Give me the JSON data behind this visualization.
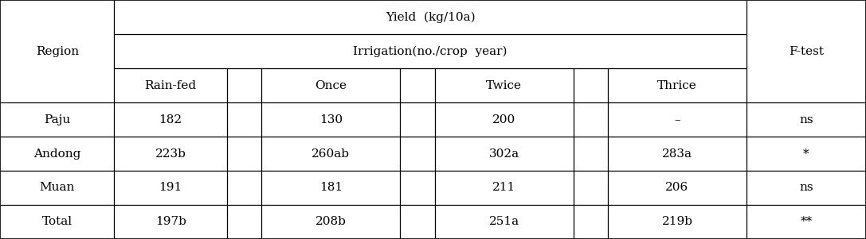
{
  "title_row": "Yield  (kg/10a)",
  "sub_title_row": "Irrigation(no./crop  year)",
  "col_headers": [
    "Rain-fed",
    "Once",
    "Twice",
    "Thrice"
  ],
  "ftest_header": "F-test",
  "region_header": "Region",
  "data": [
    [
      "Paju",
      "182",
      "130",
      "200",
      "–",
      "ns"
    ],
    [
      "Andong",
      "223b",
      "260ab",
      "302a",
      "283a",
      "*"
    ],
    [
      "Muan",
      "191",
      "181",
      "211",
      "206",
      "ns"
    ],
    [
      "Total",
      "197b",
      "208b",
      "251a",
      "219b",
      "**"
    ]
  ],
  "background_color": "#ffffff",
  "line_color": "#000000",
  "text_color": "#000000",
  "font_size": 11,
  "col_bounds": [
    0.0,
    0.132,
    0.262,
    0.302,
    0.462,
    0.502,
    0.662,
    0.702,
    0.862,
    1.0
  ],
  "row_bounds": [
    1.0,
    0.857,
    0.714,
    0.571,
    0.428,
    0.286,
    0.143,
    0.0
  ]
}
